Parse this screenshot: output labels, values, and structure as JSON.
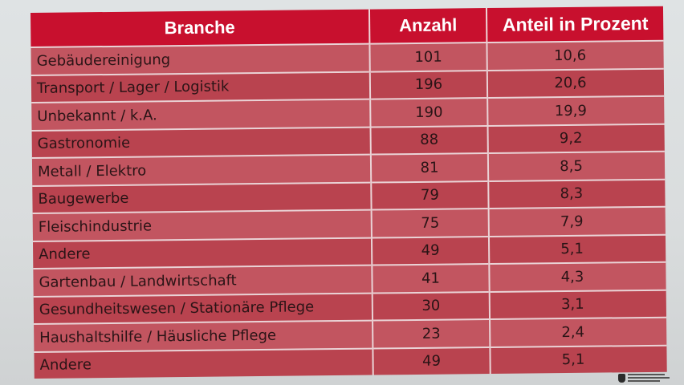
{
  "table": {
    "headers": {
      "branche": "Branche",
      "anzahl": "Anzahl",
      "anteil": "Anteil in Prozent"
    },
    "rows": [
      {
        "branche": "Gebäudereinigung",
        "anzahl": "101",
        "anteil": "10,6"
      },
      {
        "branche": "Transport / Lager / Logistik",
        "anzahl": "196",
        "anteil": "20,6"
      },
      {
        "branche": "Unbekannt / k.A.",
        "anzahl": "190",
        "anteil": "19,9"
      },
      {
        "branche": "Gastronomie",
        "anzahl": "88",
        "anteil": "9,2"
      },
      {
        "branche": "Metall / Elektro",
        "anzahl": "81",
        "anteil": "8,5"
      },
      {
        "branche": "Baugewerbe",
        "anzahl": "79",
        "anteil": "8,3"
      },
      {
        "branche": "Fleischindustrie",
        "anzahl": "75",
        "anteil": "7,9"
      },
      {
        "branche": "Andere",
        "anzahl": "49",
        "anteil": "5,1"
      },
      {
        "branche": "Gartenbau / Landwirtschaft",
        "anzahl": "41",
        "anteil": "4,3"
      },
      {
        "branche": "Gesundheitswesen / Stationäre Pflege",
        "anzahl": "30",
        "anteil": "3,1"
      },
      {
        "branche": "Haushaltshilfe / Häusliche Pflege",
        "anzahl": "23",
        "anteil": "2,4"
      },
      {
        "branche": "Andere",
        "anzahl": "49",
        "anteil": "5,1"
      }
    ]
  },
  "colors": {
    "header_red": "#c8102e",
    "row_red": "#bd4b57",
    "grid_line": "#ead3d6"
  },
  "logo": {
    "icon": "federal-eagle-icon"
  }
}
